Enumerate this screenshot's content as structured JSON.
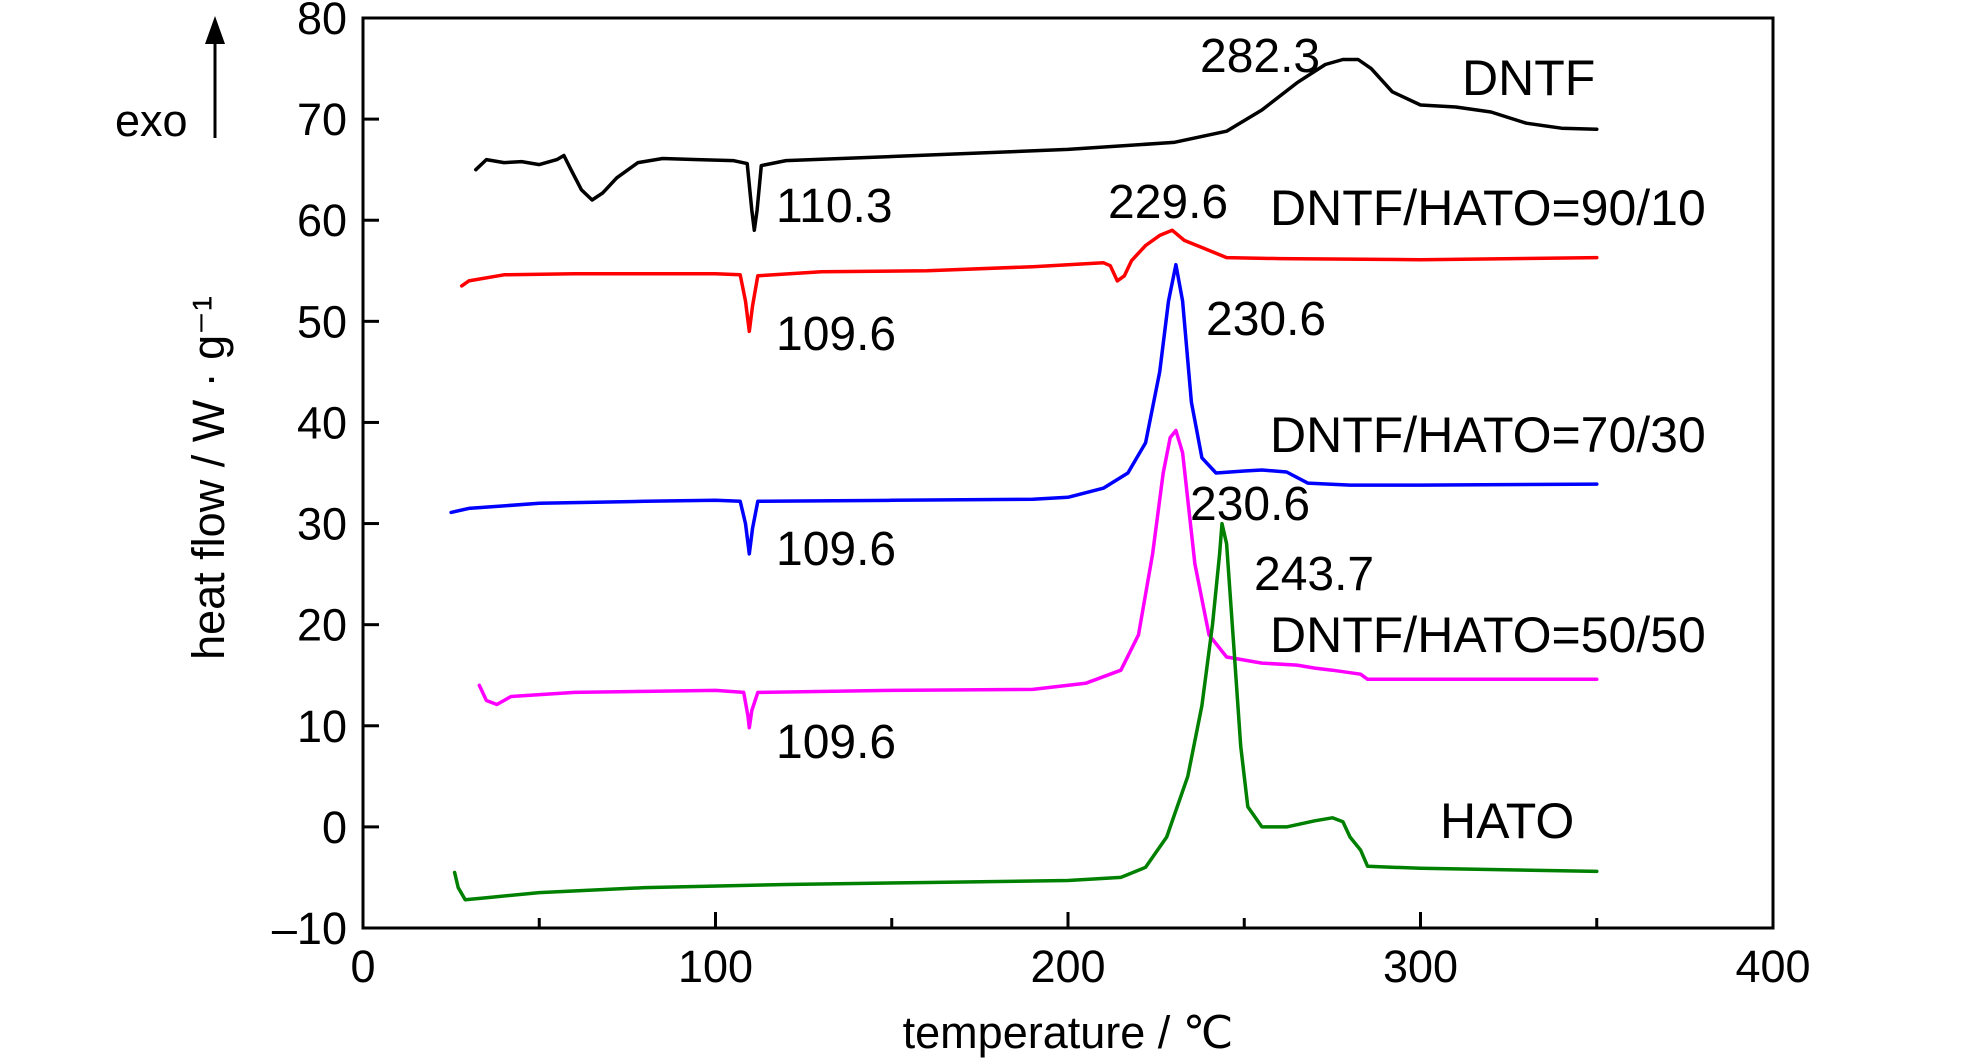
{
  "chart_data": {
    "type": "line",
    "xlabel": "temperature / ℃",
    "ylabel": "heat flow / W · g⁻¹",
    "direction_label": "exo",
    "xlim": [
      0,
      400
    ],
    "ylim": [
      -10,
      80
    ],
    "xticks": [
      "0",
      "100",
      "200",
      "300",
      "400"
    ],
    "yticks": [
      "–10",
      "0",
      "10",
      "20",
      "30",
      "40",
      "50",
      "60",
      "70",
      "80"
    ],
    "grid": false,
    "series": [
      {
        "name": "DNTF",
        "color": "#000000",
        "points": [
          [
            32,
            65
          ],
          [
            35,
            66
          ],
          [
            40,
            65.7
          ],
          [
            45,
            65.8
          ],
          [
            50,
            65.5
          ],
          [
            55,
            66
          ],
          [
            57,
            66.4
          ],
          [
            59,
            65
          ],
          [
            62,
            63
          ],
          [
            65,
            62
          ],
          [
            68,
            62.7
          ],
          [
            72,
            64.2
          ],
          [
            78,
            65.7
          ],
          [
            85,
            66.1
          ],
          [
            95,
            66
          ],
          [
            105,
            65.9
          ],
          [
            109,
            65.6
          ],
          [
            110.3,
            61
          ],
          [
            111,
            59
          ],
          [
            111.8,
            61
          ],
          [
            113,
            65.4
          ],
          [
            120,
            65.9
          ],
          [
            150,
            66.3
          ],
          [
            200,
            67
          ],
          [
            230,
            67.7
          ],
          [
            245,
            68.8
          ],
          [
            255,
            70.9
          ],
          [
            265,
            73.6
          ],
          [
            273,
            75.4
          ],
          [
            278,
            75.9
          ],
          [
            282.3,
            75.9
          ],
          [
            286,
            75
          ],
          [
            292,
            72.7
          ],
          [
            300,
            71.4
          ],
          [
            310,
            71.2
          ],
          [
            320,
            70.7
          ],
          [
            330,
            69.6
          ],
          [
            340,
            69.1
          ],
          [
            350,
            69
          ]
        ]
      },
      {
        "name": "DNTF/HATO=90/10",
        "color": "#ff0000",
        "points": [
          [
            28,
            53.5
          ],
          [
            30,
            54
          ],
          [
            40,
            54.6
          ],
          [
            60,
            54.7
          ],
          [
            80,
            54.7
          ],
          [
            100,
            54.7
          ],
          [
            107,
            54.6
          ],
          [
            108.5,
            52
          ],
          [
            109.6,
            49
          ],
          [
            110.5,
            51.5
          ],
          [
            112,
            54.5
          ],
          [
            130,
            54.9
          ],
          [
            160,
            55
          ],
          [
            190,
            55.4
          ],
          [
            210,
            55.8
          ],
          [
            212,
            55.5
          ],
          [
            214,
            54
          ],
          [
            216,
            54.5
          ],
          [
            218,
            56
          ],
          [
            222,
            57.5
          ],
          [
            226,
            58.5
          ],
          [
            229.6,
            59
          ],
          [
            233,
            58
          ],
          [
            238,
            57.3
          ],
          [
            245,
            56.3
          ],
          [
            260,
            56.2
          ],
          [
            300,
            56.1
          ],
          [
            350,
            56.3
          ]
        ]
      },
      {
        "name": "DNTF/HATO=70/30",
        "color": "#0000ff",
        "points": [
          [
            25,
            31.1
          ],
          [
            30,
            31.5
          ],
          [
            50,
            32
          ],
          [
            80,
            32.2
          ],
          [
            100,
            32.3
          ],
          [
            107,
            32.2
          ],
          [
            108.5,
            30
          ],
          [
            109.6,
            27
          ],
          [
            110.5,
            29.5
          ],
          [
            112,
            32.2
          ],
          [
            150,
            32.3
          ],
          [
            190,
            32.4
          ],
          [
            200,
            32.6
          ],
          [
            210,
            33.5
          ],
          [
            217,
            35
          ],
          [
            222,
            38
          ],
          [
            226,
            45
          ],
          [
            228.5,
            52
          ],
          [
            230.6,
            55.6
          ],
          [
            232.5,
            52
          ],
          [
            235,
            42
          ],
          [
            238,
            36.5
          ],
          [
            242,
            35
          ],
          [
            250,
            35.2
          ],
          [
            255,
            35.3
          ],
          [
            262,
            35.1
          ],
          [
            268,
            34
          ],
          [
            280,
            33.8
          ],
          [
            300,
            33.8
          ],
          [
            350,
            33.9
          ]
        ]
      },
      {
        "name": "DNTF/HATO=50/50",
        "color": "#ff00ff",
        "points": [
          [
            33,
            14
          ],
          [
            35,
            12.5
          ],
          [
            38,
            12.1
          ],
          [
            42,
            12.9
          ],
          [
            60,
            13.3
          ],
          [
            80,
            13.4
          ],
          [
            100,
            13.5
          ],
          [
            108,
            13.3
          ],
          [
            109.2,
            11
          ],
          [
            109.6,
            9.8
          ],
          [
            110.3,
            11.5
          ],
          [
            112,
            13.3
          ],
          [
            150,
            13.5
          ],
          [
            190,
            13.6
          ],
          [
            205,
            14.2
          ],
          [
            215,
            15.5
          ],
          [
            220,
            19
          ],
          [
            224,
            27
          ],
          [
            227,
            35
          ],
          [
            229,
            38.5
          ],
          [
            230.6,
            39.2
          ],
          [
            232.5,
            37
          ],
          [
            236,
            26
          ],
          [
            240,
            19
          ],
          [
            245,
            16.8
          ],
          [
            255,
            16.2
          ],
          [
            265,
            16
          ],
          [
            270,
            15.7
          ],
          [
            275,
            15.5
          ],
          [
            283,
            15.1
          ],
          [
            285,
            14.6
          ],
          [
            300,
            14.6
          ],
          [
            350,
            14.6
          ]
        ]
      },
      {
        "name": "HATO",
        "color": "#008000",
        "points": [
          [
            26,
            -4.5
          ],
          [
            27,
            -6
          ],
          [
            29,
            -7.2
          ],
          [
            35,
            -7
          ],
          [
            50,
            -6.5
          ],
          [
            80,
            -6
          ],
          [
            120,
            -5.7
          ],
          [
            160,
            -5.5
          ],
          [
            200,
            -5.3
          ],
          [
            215,
            -5
          ],
          [
            222,
            -4
          ],
          [
            228,
            -1
          ],
          [
            234,
            5
          ],
          [
            238,
            12
          ],
          [
            241,
            20
          ],
          [
            243,
            27
          ],
          [
            243.7,
            30
          ],
          [
            245,
            28
          ],
          [
            247,
            18
          ],
          [
            249,
            8
          ],
          [
            251,
            2
          ],
          [
            255,
            0
          ],
          [
            262,
            0
          ],
          [
            270,
            0.6
          ],
          [
            275,
            0.9
          ],
          [
            278,
            0.5
          ],
          [
            280,
            -1
          ],
          [
            283,
            -2.3
          ],
          [
            285,
            -3.9
          ],
          [
            300,
            -4.1
          ],
          [
            350,
            -4.4
          ]
        ]
      }
    ],
    "annotations": [
      "282.3",
      "110.3",
      "229.6",
      "109.6",
      "230.6",
      "109.6",
      "230.6",
      "243.7",
      "109.6"
    ],
    "series_labels": [
      "DNTF",
      "DNTF/HATO=90/10",
      "DNTF/HATO=70/30",
      "DNTF/HATO=50/50",
      "HATO"
    ]
  }
}
